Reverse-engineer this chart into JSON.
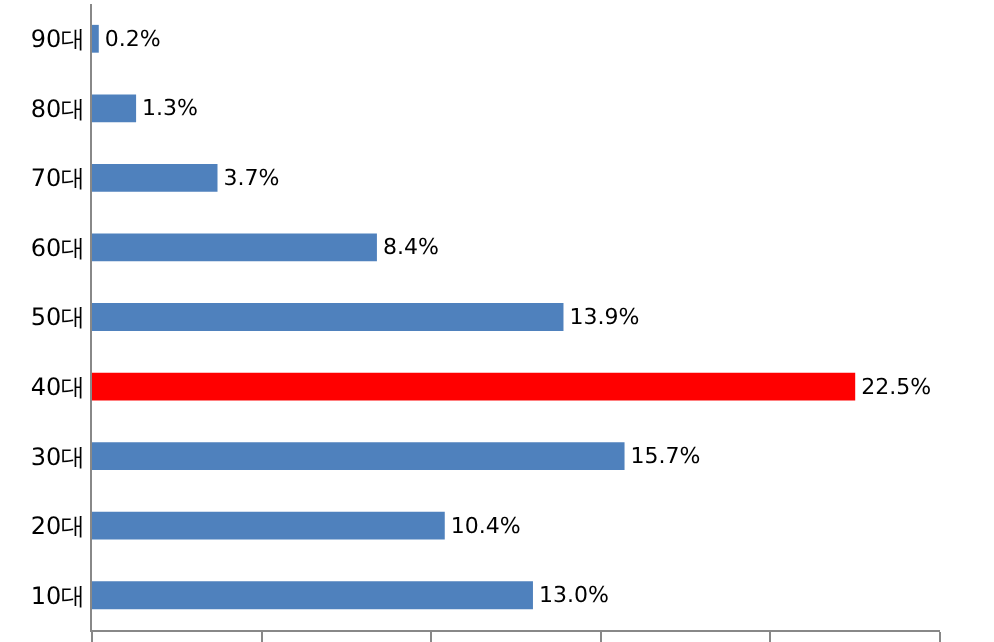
{
  "chart_data": {
    "type": "bar",
    "orientation": "horizontal",
    "categories": [
      "90대",
      "80대",
      "70대",
      "60대",
      "50대",
      "40대",
      "30대",
      "20대",
      "10대"
    ],
    "values": [
      0.2,
      1.3,
      3.7,
      8.4,
      13.9,
      22.5,
      15.7,
      10.4,
      13.0
    ],
    "colors": [
      "#4f81bd",
      "#4f81bd",
      "#4f81bd",
      "#4f81bd",
      "#4f81bd",
      "#ff0000",
      "#4f81bd",
      "#4f81bd",
      "#4f81bd"
    ],
    "value_labels": [
      "0.2%",
      "1.3%",
      "3.7%",
      "8.4%",
      "13.9%",
      "22.5%",
      "15.7%",
      "10.4%",
      "13.0%"
    ],
    "xlim": [
      0,
      25
    ],
    "xticks": [
      {
        "value": 0,
        "label": null
      },
      {
        "value": 5,
        "label": null
      },
      {
        "value": 10,
        "label": null
      },
      {
        "value": 15,
        "label": null
      },
      {
        "value": 20,
        "label": null
      },
      {
        "value": 25,
        "label": null
      }
    ],
    "tick_labels": "y",
    "grid": false
  }
}
